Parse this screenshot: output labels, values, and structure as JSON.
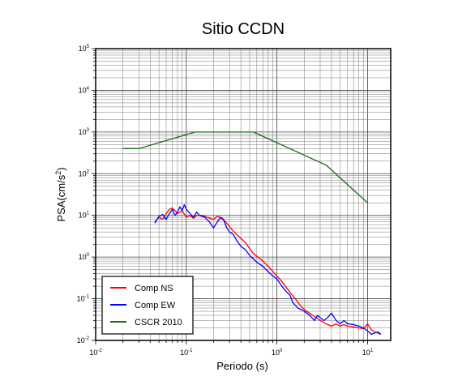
{
  "chart_data": {
    "type": "line",
    "title": "Sitio CCDN",
    "xlabel": "Periodo (s)",
    "ylabel_base": "PSA(cm/s",
    "ylabel_exp": "2",
    "ylabel_tail": ")",
    "x_scale": "log",
    "y_scale": "log",
    "xlim": [
      0.01,
      18
    ],
    "ylim": [
      0.01,
      100000
    ],
    "x_ticks": [
      {
        "value": 0.01,
        "base": "10",
        "exp": "-2"
      },
      {
        "value": 0.1,
        "base": "10",
        "exp": "-1"
      },
      {
        "value": 1,
        "base": "10",
        "exp": "0"
      },
      {
        "value": 10,
        "base": "10",
        "exp": "1"
      }
    ],
    "y_ticks": [
      {
        "value": 0.01,
        "base": "10",
        "exp": "-2"
      },
      {
        "value": 0.1,
        "base": "10",
        "exp": "-1"
      },
      {
        "value": 1,
        "base": "10",
        "exp": "0"
      },
      {
        "value": 10,
        "base": "10",
        "exp": "1"
      },
      {
        "value": 100,
        "base": "10",
        "exp": "2"
      },
      {
        "value": 1000,
        "base": "10",
        "exp": "3"
      },
      {
        "value": 10000,
        "base": "10",
        "exp": "4"
      },
      {
        "value": 100000,
        "base": "10",
        "exp": "5"
      }
    ],
    "grid": true,
    "legend_position": "bottom-left",
    "series": [
      {
        "name": "Comp NS",
        "color": "#ff0000",
        "points": [
          [
            0.045,
            7
          ],
          [
            0.05,
            9
          ],
          [
            0.055,
            8
          ],
          [
            0.06,
            11
          ],
          [
            0.065,
            14
          ],
          [
            0.07,
            15
          ],
          [
            0.075,
            13
          ],
          [
            0.08,
            11
          ],
          [
            0.09,
            13
          ],
          [
            0.1,
            9
          ],
          [
            0.11,
            10
          ],
          [
            0.12,
            8.5
          ],
          [
            0.13,
            10
          ],
          [
            0.15,
            10
          ],
          [
            0.17,
            9
          ],
          [
            0.2,
            8
          ],
          [
            0.22,
            9.5
          ],
          [
            0.25,
            8.5
          ],
          [
            0.28,
            6.5
          ],
          [
            0.32,
            4.5
          ],
          [
            0.36,
            3.5
          ],
          [
            0.4,
            2.8
          ],
          [
            0.45,
            2.2
          ],
          [
            0.5,
            1.6
          ],
          [
            0.55,
            1.2
          ],
          [
            0.6,
            1.05
          ],
          [
            0.7,
            0.8
          ],
          [
            0.8,
            0.6
          ],
          [
            0.9,
            0.45
          ],
          [
            1.0,
            0.35
          ],
          [
            1.1,
            0.28
          ],
          [
            1.2,
            0.22
          ],
          [
            1.4,
            0.14
          ],
          [
            1.6,
            0.1
          ],
          [
            1.8,
            0.07
          ],
          [
            2.0,
            0.055
          ],
          [
            2.3,
            0.045
          ],
          [
            2.7,
            0.035
          ],
          [
            3.0,
            0.03
          ],
          [
            3.5,
            0.025
          ],
          [
            4.0,
            0.022
          ],
          [
            4.5,
            0.025
          ],
          [
            5.0,
            0.022
          ],
          [
            5.5,
            0.024
          ],
          [
            6.0,
            0.022
          ],
          [
            7.0,
            0.021
          ],
          [
            8.0,
            0.02
          ],
          [
            9.0,
            0.019
          ],
          [
            10.0,
            0.025
          ],
          [
            11.0,
            0.018
          ],
          [
            12.0,
            0.016
          ],
          [
            13.0,
            0.015
          ],
          [
            14.0,
            0.014
          ]
        ]
      },
      {
        "name": "Comp EW",
        "color": "#0000ff",
        "points": [
          [
            0.045,
            6.5
          ],
          [
            0.05,
            9.5
          ],
          [
            0.055,
            10.5
          ],
          [
            0.06,
            8
          ],
          [
            0.065,
            11
          ],
          [
            0.07,
            14
          ],
          [
            0.075,
            10
          ],
          [
            0.08,
            12
          ],
          [
            0.085,
            16
          ],
          [
            0.09,
            13
          ],
          [
            0.095,
            18
          ],
          [
            0.1,
            14
          ],
          [
            0.11,
            11
          ],
          [
            0.12,
            9
          ],
          [
            0.13,
            12
          ],
          [
            0.14,
            10
          ],
          [
            0.16,
            9
          ],
          [
            0.18,
            7
          ],
          [
            0.2,
            5
          ],
          [
            0.22,
            7
          ],
          [
            0.24,
            9
          ],
          [
            0.26,
            7.5
          ],
          [
            0.28,
            5
          ],
          [
            0.3,
            4
          ],
          [
            0.33,
            3.5
          ],
          [
            0.36,
            2.5
          ],
          [
            0.4,
            1.8
          ],
          [
            0.45,
            1.5
          ],
          [
            0.5,
            1.1
          ],
          [
            0.55,
            0.9
          ],
          [
            0.6,
            0.75
          ],
          [
            0.7,
            0.6
          ],
          [
            0.8,
            0.45
          ],
          [
            0.9,
            0.35
          ],
          [
            1.0,
            0.3
          ],
          [
            1.1,
            0.22
          ],
          [
            1.2,
            0.17
          ],
          [
            1.3,
            0.14
          ],
          [
            1.4,
            0.12
          ],
          [
            1.5,
            0.08
          ],
          [
            1.7,
            0.06
          ],
          [
            2.0,
            0.05
          ],
          [
            2.3,
            0.04
          ],
          [
            2.6,
            0.03
          ],
          [
            2.8,
            0.04
          ],
          [
            3.0,
            0.035
          ],
          [
            3.3,
            0.03
          ],
          [
            3.6,
            0.035
          ],
          [
            4.0,
            0.045
          ],
          [
            4.5,
            0.03
          ],
          [
            5.0,
            0.025
          ],
          [
            5.5,
            0.03
          ],
          [
            6.0,
            0.025
          ],
          [
            7.0,
            0.024
          ],
          [
            8.0,
            0.022
          ],
          [
            9.0,
            0.02
          ],
          [
            10.0,
            0.017
          ],
          [
            11.0,
            0.014
          ],
          [
            12.0,
            0.015
          ],
          [
            13.0,
            0.016
          ],
          [
            14.0,
            0.014
          ]
        ]
      },
      {
        "name": "CSCR 2010",
        "color": "#1a6b1a",
        "points": [
          [
            0.02,
            400
          ],
          [
            0.03,
            400
          ],
          [
            0.125,
            1000
          ],
          [
            0.55,
            1000
          ],
          [
            3.5,
            160
          ],
          [
            10,
            20
          ]
        ]
      }
    ]
  }
}
